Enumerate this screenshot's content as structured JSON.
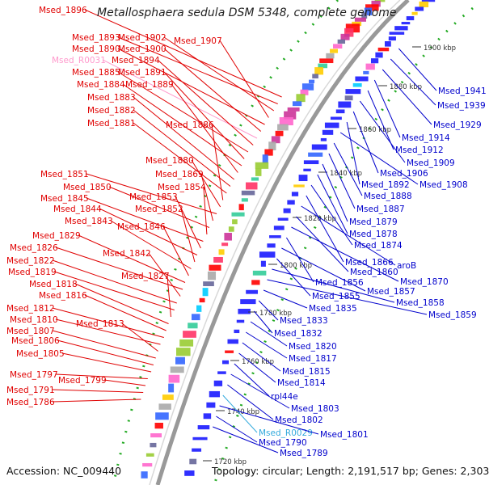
{
  "title": "Metallosphaera sedula DSM 5348, complete genome",
  "footer": {
    "accession": "Accession: NC_009440",
    "summary": "Topology: circular; Length: 2,191,517 bp; Genes: 2,303"
  },
  "colors": {
    "left_labels": "#e00000",
    "right_labels": "#0000cc",
    "rna_left": "#ff99cc",
    "rna_right": "#33aadd",
    "backbone": "#888888",
    "tick_dots": "#22aa22",
    "forward_genes": "#ff0000",
    "reverse_genes": "#1a1aff"
  },
  "scale_ticks": [
    "1900 kbp",
    "1880 kbp",
    "1860 kbp",
    "1840 kbp",
    "1820 kbp",
    "1800 kbp",
    "1780 kbp",
    "1760 kbp",
    "1740 kbp",
    "1720 kbp"
  ],
  "left_labels": [
    "Msed_1896",
    "Msed_1893",
    "Msed_1902",
    "Msed_1907",
    "Msed_1890",
    "Msed_1900",
    "Msed_R0031",
    "Msed_1894",
    "Msed_1885",
    "Msed_1891",
    "Msed_1884",
    "Msed_1889",
    "Msed_1883",
    "Msed_1882",
    "Msed_1881",
    "Msed_1886",
    "Msed_1880",
    "Msed_1851",
    "Msed_1869",
    "Msed_1850",
    "Msed_1854",
    "Msed_1845",
    "Msed_1853",
    "Msed_1844",
    "Msed_1852",
    "Msed_1843",
    "Msed_1846",
    "Msed_1829",
    "Msed_1826",
    "Msed_1842",
    "Msed_1822",
    "Msed_1819",
    "Msed_1827",
    "Msed_1818",
    "Msed_1816",
    "Msed_1812",
    "Msed_1810",
    "Msed_1813",
    "Msed_1807",
    "Msed_1806",
    "Msed_1805",
    "Msed_1797",
    "Msed_1799",
    "Msed_1791",
    "Msed_1786"
  ],
  "right_labels": [
    "Msed_1941",
    "Msed_1939",
    "Msed_1929",
    "Msed_1914",
    "Msed_1912",
    "Msed_1909",
    "Msed_1906",
    "Msed_1892",
    "Msed_1908",
    "Msed_1888",
    "Msed_1887",
    "Msed_1879",
    "Msed_1878",
    "Msed_1874",
    "Msed_1866",
    "aroB",
    "Msed_1860",
    "Msed_1870",
    "Msed_1856",
    "Msed_1857",
    "Msed_1855",
    "Msed_1858",
    "Msed_1859",
    "Msed_1835",
    "Msed_1833",
    "Msed_1832",
    "Msed_1820",
    "Msed_1817",
    "Msed_1815",
    "Msed_1814",
    "rpl44e",
    "Msed_1803",
    "Msed_1802",
    "Msed_R0029",
    "Msed_1801",
    "Msed_1790",
    "Msed_1789"
  ]
}
